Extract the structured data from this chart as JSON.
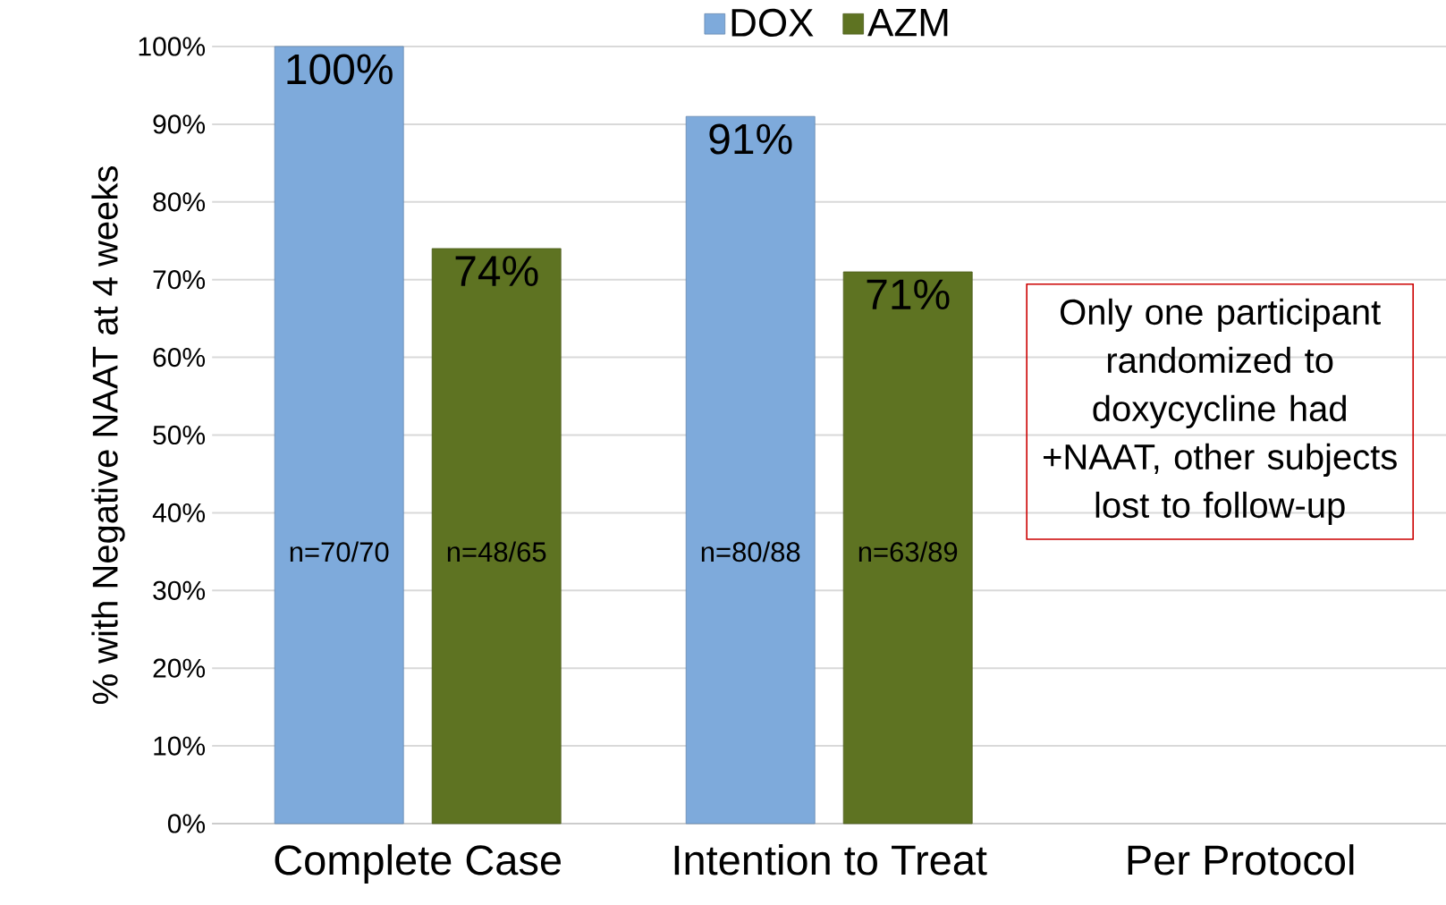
{
  "chart_data": {
    "type": "bar",
    "categories": [
      "Complete Case",
      "Intention to Treat",
      "Per Protocol"
    ],
    "series": [
      {
        "name": "DOX",
        "color": "#7eaadb",
        "values": [
          100,
          91,
          null
        ],
        "value_labels": [
          "100%",
          "91%",
          null
        ]
      },
      {
        "name": "AZM",
        "color": "#5e7322",
        "values": [
          74,
          71,
          null
        ],
        "value_labels": [
          "74%",
          "71%",
          null
        ]
      }
    ],
    "ylabel": "% with Negative NAAT at 4 weeks",
    "ylim": [
      0,
      100
    ],
    "yticks": [
      {
        "value": 0,
        "label": "0%"
      },
      {
        "value": 10,
        "label": "10%"
      },
      {
        "value": 20,
        "label": "20%"
      },
      {
        "value": 30,
        "label": "30%"
      },
      {
        "value": 40,
        "label": "40%"
      },
      {
        "value": 50,
        "label": "50%"
      },
      {
        "value": 60,
        "label": "60%"
      },
      {
        "value": 70,
        "label": "70%"
      },
      {
        "value": 80,
        "label": "80%"
      },
      {
        "value": 90,
        "label": "90%"
      },
      {
        "value": 100,
        "label": "100%"
      }
    ],
    "grid": "y",
    "legend": "top",
    "annotations": [
      "n=70/70",
      "n=48/65",
      "n=80/88",
      "n=63/89",
      "Only one participant randomized to doxycycline had +NAAT, other subjects lost to follow-up"
    ]
  }
}
